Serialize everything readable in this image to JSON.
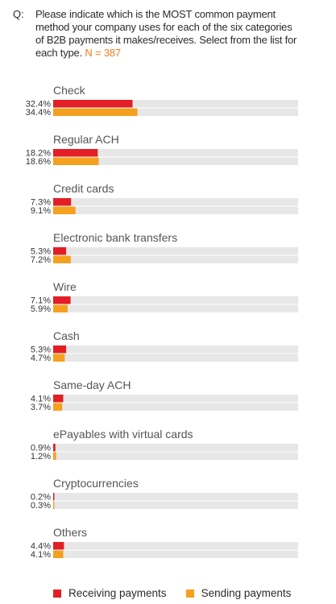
{
  "question": {
    "prefix": "Q:",
    "text": "Please indicate which is the MOST common payment method your company uses for each of the six categories of B2B payments it makes/receives. Select from the list for each type.",
    "sample": "N = 387"
  },
  "colors": {
    "receiving": "#e31e26",
    "sending": "#f5a01f",
    "track": "#e7e7e7"
  },
  "chart_data": {
    "type": "bar",
    "orientation": "horizontal",
    "xlim": [
      0,
      100
    ],
    "value_suffix": "%",
    "categories": [
      "Check",
      "Regular ACH",
      "Credit cards",
      "Electronic bank transfers",
      "Wire",
      "Cash",
      "Same-day ACH",
      "ePayables with virtual cards",
      "Cryptocurrencies",
      "Others"
    ],
    "series": [
      {
        "name": "Receiving payments",
        "color": "#e31e26",
        "values": [
          32.4,
          18.2,
          7.3,
          5.3,
          7.1,
          5.3,
          4.1,
          0.9,
          0.2,
          4.4
        ]
      },
      {
        "name": "Sending payments",
        "color": "#f5a01f",
        "values": [
          34.4,
          18.6,
          9.1,
          7.2,
          5.9,
          4.7,
          3.7,
          1.2,
          0.3,
          4.1
        ]
      }
    ],
    "legend_position": "bottom"
  }
}
